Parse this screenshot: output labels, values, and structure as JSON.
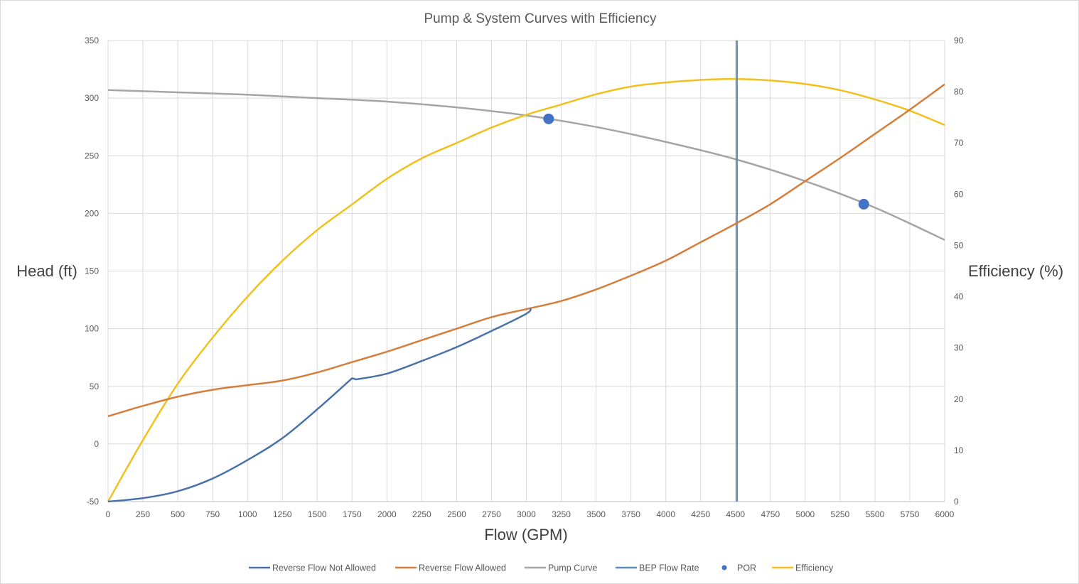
{
  "chart_data": {
    "type": "line",
    "title": "Pump & System Curves  with Efficiency",
    "xlabel": "Flow (GPM)",
    "ylabel": "Head (ft)",
    "y2label": "Efficiency (%)",
    "xlim": [
      0,
      6000
    ],
    "ylim": [
      -50,
      350
    ],
    "y2lim": [
      0,
      90
    ],
    "x_ticks": [
      0,
      250,
      500,
      750,
      1000,
      1250,
      1500,
      1750,
      2000,
      2250,
      2500,
      2750,
      3000,
      3250,
      3500,
      3750,
      4000,
      4250,
      4500,
      4750,
      5000,
      5250,
      5500,
      5750,
      6000
    ],
    "y_ticks": [
      -50,
      0,
      50,
      100,
      150,
      200,
      250,
      300,
      350
    ],
    "y2_ticks": [
      0,
      10,
      20,
      30,
      40,
      50,
      60,
      70,
      80,
      90
    ],
    "grid": true,
    "legend_position": "bottom",
    "colors": {
      "reverse_flow_not_allowed": "#4a72a8",
      "reverse_flow_allowed": "#d57e3c",
      "pump_curve": "#a5a5a5",
      "bep_flow_rate": "#5b8bb8",
      "por": "#4472c4",
      "efficiency": "#f2c01d"
    },
    "series": [
      {
        "name": "Reverse Flow Not Allowed",
        "axis": "left",
        "x": [
          0,
          250,
          500,
          750,
          1000,
          1250,
          1500,
          1750,
          1780,
          2000,
          2250,
          2500,
          2750,
          3000,
          3030
        ],
        "y": [
          -50,
          -47,
          -41,
          -30,
          -14,
          5,
          30,
          57,
          56,
          61,
          72,
          84,
          98,
          113,
          118
        ]
      },
      {
        "name": "Reverse Flow Allowed",
        "axis": "left",
        "x": [
          0,
          250,
          500,
          750,
          1000,
          1250,
          1500,
          1750,
          2000,
          2250,
          2500,
          2750,
          3000,
          3250,
          3500,
          3750,
          4000,
          4250,
          4500,
          4750,
          5000,
          5250,
          5500,
          5750,
          6000
        ],
        "y": [
          24,
          33,
          41,
          47,
          51,
          55,
          62,
          71,
          80,
          90,
          100,
          110,
          117,
          124,
          134,
          146,
          159,
          175,
          191,
          208,
          228,
          248,
          269,
          290,
          312
        ]
      },
      {
        "name": "Pump Curve",
        "axis": "left",
        "x": [
          0,
          500,
          1000,
          1500,
          2000,
          2500,
          3000,
          3500,
          4000,
          4500,
          5000,
          5500,
          6000
        ],
        "y": [
          307,
          305,
          303,
          300,
          297,
          292,
          285,
          275,
          262,
          247,
          228,
          205,
          177
        ]
      },
      {
        "name": "BEP Flow Rate",
        "axis": "left",
        "x": [
          4510,
          4510
        ],
        "y": [
          -50,
          350
        ]
      },
      {
        "name": "POR",
        "axis": "left",
        "x": [
          3160,
          5420
        ],
        "y": [
          282,
          208
        ]
      },
      {
        "name": "Efficiency",
        "axis": "right",
        "x": [
          0,
          250,
          500,
          750,
          1000,
          1250,
          1500,
          1750,
          2000,
          2250,
          2500,
          2750,
          3000,
          3250,
          3500,
          3750,
          4000,
          4250,
          4500,
          4750,
          5000,
          5250,
          5500,
          5750,
          6000
        ],
        "y": [
          0,
          12,
          23,
          32,
          40,
          47,
          53,
          58,
          63,
          67,
          70,
          73,
          75.5,
          77.5,
          79.5,
          81,
          81.8,
          82.3,
          82.5,
          82.2,
          81.5,
          80.3,
          78.5,
          76.3,
          73.5
        ]
      }
    ]
  }
}
